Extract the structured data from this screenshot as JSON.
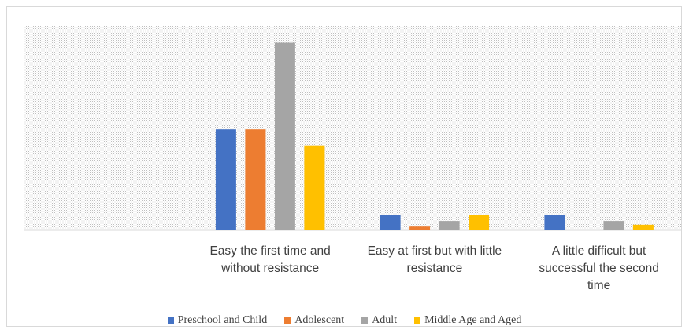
{
  "chart_data": {
    "type": "bar",
    "categories": [
      "",
      "Easy the first time and without resistance",
      "Easy at first but with little resistance",
      "A little difficult but successful the second time"
    ],
    "category_label_lines": [
      [],
      [
        "Easy the first time and",
        "without resistance"
      ],
      [
        "Easy at first but with little",
        "resistance"
      ],
      [
        "A little difficult but",
        "successful the second",
        "time"
      ]
    ],
    "series": [
      {
        "name": "Preschool and Child",
        "color": "#4472C4",
        "values": [
          0,
          54,
          8,
          8
        ]
      },
      {
        "name": "Adolescent",
        "color": "#ED7D31",
        "values": [
          0,
          54,
          2,
          0
        ]
      },
      {
        "name": "Adult",
        "color": "#A5A5A5",
        "values": [
          0,
          100,
          5,
          5
        ]
      },
      {
        "name": "Middle Age and Aged",
        "color": "#FFC000",
        "values": [
          0,
          45,
          8,
          3
        ]
      }
    ],
    "ylim": [
      0,
      109
    ],
    "grid": false,
    "legend_position": "bottom",
    "plot_background": "dotted-pattern"
  }
}
